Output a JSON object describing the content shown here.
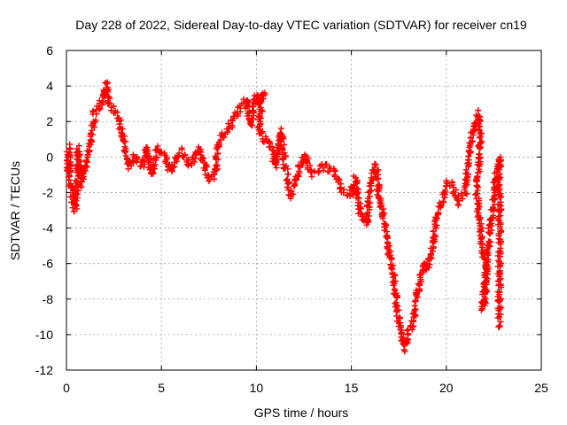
{
  "chart_data": {
    "type": "scatter",
    "title": "Day 228 of 2022, Sidereal Day-to-day VTEC variation (SDTVAR) for receiver cn19",
    "xlabel": "GPS time / hours",
    "ylabel": "SDTVAR / TECUs",
    "xlim": [
      0,
      25
    ],
    "ylim": [
      -12,
      6
    ],
    "xticks": [
      0,
      5,
      10,
      15,
      20,
      25
    ],
    "yticks": [
      -12,
      -10,
      -8,
      -6,
      -4,
      -2,
      0,
      2,
      4,
      6
    ],
    "grid": true,
    "marker": "+",
    "color": "#ff0000",
    "series": [
      {
        "name": "SDTVAR",
        "trace_points": [
          [
            0.0,
            -1.0
          ],
          [
            0.1,
            0.5
          ],
          [
            0.2,
            -1.5
          ],
          [
            0.35,
            -2.5
          ],
          [
            0.45,
            -3.0
          ],
          [
            0.55,
            -2.0
          ],
          [
            0.6,
            0.5
          ],
          [
            0.8,
            -1.5
          ],
          [
            1.0,
            -0.5
          ],
          [
            1.2,
            0.5
          ],
          [
            1.3,
            1.0
          ],
          [
            1.5,
            2.5
          ],
          [
            1.8,
            3.0
          ],
          [
            2.1,
            4.1
          ],
          [
            2.2,
            3.0
          ],
          [
            2.5,
            2.6
          ],
          [
            2.8,
            2.0
          ],
          [
            3.0,
            1.0
          ],
          [
            3.3,
            -0.5
          ],
          [
            3.6,
            0.0
          ],
          [
            4.0,
            -0.5
          ],
          [
            4.2,
            0.5
          ],
          [
            4.5,
            -1.0
          ],
          [
            4.8,
            0.5
          ],
          [
            5.2,
            0.0
          ],
          [
            5.5,
            -0.8
          ],
          [
            6.0,
            0.3
          ],
          [
            6.5,
            -0.5
          ],
          [
            7.0,
            0.5
          ],
          [
            7.5,
            -1.2
          ],
          [
            7.8,
            -1.0
          ],
          [
            8.0,
            0.8
          ],
          [
            8.5,
            1.5
          ],
          [
            9.0,
            2.5
          ],
          [
            9.5,
            3.2
          ],
          [
            9.7,
            1.8
          ],
          [
            10.0,
            3.5
          ],
          [
            10.2,
            3.0
          ],
          [
            10.4,
            3.6
          ],
          [
            10.1,
            1.8
          ],
          [
            10.4,
            1.0
          ],
          [
            10.8,
            0.5
          ],
          [
            11.0,
            -0.5
          ],
          [
            11.3,
            1.5
          ],
          [
            11.5,
            -0.5
          ],
          [
            11.8,
            -2.2
          ],
          [
            12.0,
            -1.5
          ],
          [
            12.5,
            0.0
          ],
          [
            13.0,
            -1.0
          ],
          [
            13.5,
            -0.5
          ],
          [
            14.0,
            -0.8
          ],
          [
            14.5,
            -1.8
          ],
          [
            15.0,
            -2.2
          ],
          [
            15.2,
            -1.2
          ],
          [
            15.5,
            -3.5
          ],
          [
            15.8,
            -3.8
          ],
          [
            16.0,
            -1.5
          ],
          [
            16.3,
            -0.5
          ],
          [
            16.5,
            -2.5
          ],
          [
            16.8,
            -4.0
          ],
          [
            17.0,
            -5.5
          ],
          [
            17.2,
            -6.5
          ],
          [
            17.4,
            -8.5
          ],
          [
            17.6,
            -10.0
          ],
          [
            17.8,
            -10.8
          ],
          [
            18.0,
            -10.0
          ],
          [
            18.3,
            -9.0
          ],
          [
            18.5,
            -7.5
          ],
          [
            18.8,
            -6.0
          ],
          [
            19.0,
            -6.3
          ],
          [
            19.2,
            -5.5
          ],
          [
            19.5,
            -3.5
          ],
          [
            19.8,
            -2.5
          ],
          [
            20.0,
            -1.5
          ],
          [
            20.3,
            -1.5
          ],
          [
            20.6,
            -2.5
          ],
          [
            21.0,
            -2.0
          ],
          [
            21.2,
            0.5
          ],
          [
            21.5,
            1.8
          ],
          [
            21.7,
            2.5
          ],
          [
            21.8,
            0.8
          ],
          [
            21.6,
            -2.0
          ],
          [
            21.8,
            -4.0
          ],
          [
            21.9,
            -5.5
          ],
          [
            22.1,
            -6.0
          ],
          [
            22.1,
            -7.5
          ],
          [
            21.9,
            -8.5
          ],
          [
            22.6,
            -1.2
          ],
          [
            22.8,
            0.0
          ],
          [
            22.8,
            -9.5
          ]
        ]
      }
    ]
  }
}
